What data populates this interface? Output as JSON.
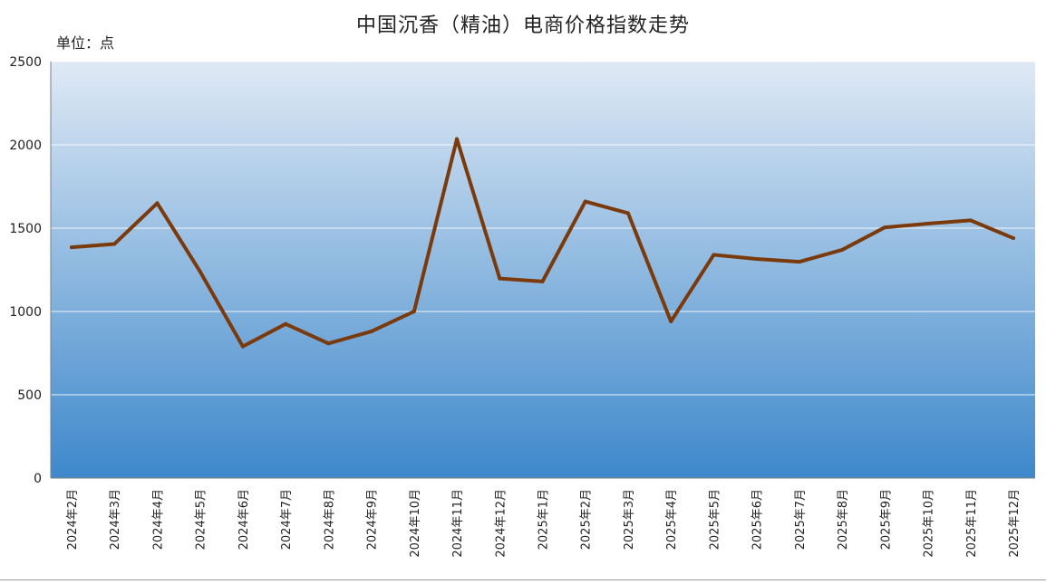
{
  "title": "中国沉香（精油）电商价格指数走势",
  "unit_label": "单位：点",
  "chart_data": {
    "type": "line",
    "title": "中国沉香（精油）电商价格指数走势",
    "ylabel": "单位：点",
    "xlabel": "",
    "ylim": [
      0,
      2500
    ],
    "yticks": [
      0,
      500,
      1000,
      1500,
      2000,
      2500
    ],
    "grid": true,
    "legend": "none",
    "categories": [
      "2024年2月",
      "2024年3月",
      "2024年4月",
      "2024年5月",
      "2024年6月",
      "2024年7月",
      "2024年8月",
      "2024年9月",
      "2024年10月",
      "2024年11月",
      "2024年12月",
      "2025年1月",
      "2025年2月",
      "2025年3月",
      "2025年4月",
      "2025年5月",
      "2025年6月",
      "2025年7月",
      "2025年8月",
      "2025年9月",
      "2025年10月",
      "2025年11月",
      "2025年12月"
    ],
    "series": [
      {
        "values": [
          1385,
          1405,
          1650,
          1240,
          790,
          925,
          808,
          880,
          1000,
          2035,
          1198,
          1180,
          1660,
          1590,
          940,
          1340,
          1315,
          1298,
          1370,
          1505,
          1527,
          1547,
          1440
        ]
      }
    ],
    "colors": {
      "line": "#7a3a0c",
      "plot_top": "#dfe9f5",
      "plot_bottom": "#3d88cb",
      "gridline": "#ffffff",
      "axis": "#7f7f7f",
      "text": "#222222"
    }
  }
}
